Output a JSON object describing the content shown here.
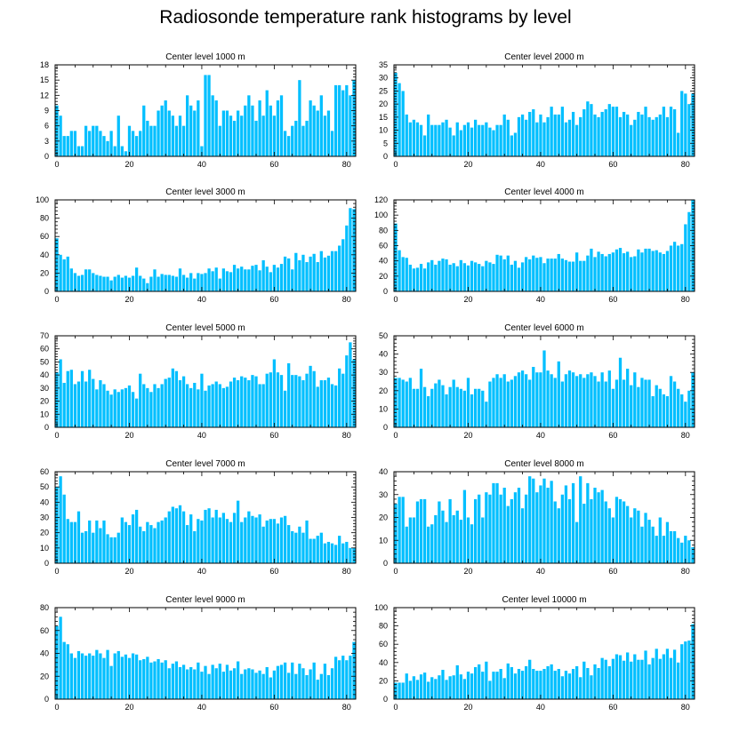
{
  "title": "Radiosonde temperature rank histograms by level",
  "colors": {
    "bar": "#00bfff",
    "bar_edge": "#0aa8e6",
    "axis": "#000000"
  },
  "chart_data": [
    {
      "type": "bar",
      "title": "Center level 1000 m",
      "xlim": [
        -0.5,
        82.5
      ],
      "ylim": [
        0,
        18
      ],
      "xticks": [
        0,
        20,
        40,
        60,
        80
      ],
      "yticks": [
        0,
        3,
        6,
        9,
        12,
        15,
        18
      ],
      "values": [
        10,
        8,
        4,
        4,
        5,
        5,
        2,
        2,
        6,
        5,
        6,
        6,
        5,
        4,
        3,
        5,
        2,
        8,
        2,
        1,
        6,
        5,
        4,
        5,
        10,
        7,
        6,
        6,
        9,
        10,
        11,
        9,
        8,
        6,
        8,
        6,
        12,
        10,
        9,
        11,
        2,
        16,
        16,
        12,
        11,
        6,
        9,
        9,
        8,
        7,
        9,
        8,
        10,
        12,
        10,
        7,
        11,
        8,
        13,
        10,
        8,
        11,
        12,
        5,
        4,
        6,
        7,
        15,
        6,
        7,
        11,
        10,
        9,
        12,
        8,
        9,
        5,
        14,
        14,
        13,
        14,
        12,
        15
      ]
    },
    {
      "type": "bar",
      "title": "Center level 2000 m",
      "xlim": [
        -0.5,
        82.5
      ],
      "ylim": [
        0,
        35
      ],
      "xticks": [
        0,
        20,
        40,
        60,
        80
      ],
      "yticks": [
        0,
        5,
        10,
        15,
        20,
        25,
        30,
        35
      ],
      "values": [
        32,
        28,
        25,
        16,
        13,
        14,
        13,
        12,
        8,
        16,
        12,
        12,
        12,
        13,
        14,
        11,
        8,
        13,
        10,
        12,
        13,
        11,
        14,
        12,
        12,
        13,
        11,
        10,
        12,
        12,
        16,
        14,
        8,
        9,
        15,
        16,
        14,
        17,
        18,
        13,
        16,
        13,
        15,
        19,
        16,
        16,
        19,
        13,
        14,
        17,
        12,
        15,
        18,
        21,
        20,
        16,
        15,
        17,
        18,
        20,
        19,
        19,
        15,
        17,
        16,
        12,
        14,
        17,
        16,
        19,
        15,
        14,
        15,
        16,
        19,
        15,
        19,
        18,
        9,
        25,
        24,
        20,
        24
      ]
    },
    {
      "type": "bar",
      "title": "Center level 3000 m",
      "xlim": [
        -0.5,
        82.5
      ],
      "ylim": [
        0,
        100
      ],
      "xticks": [
        0,
        20,
        40,
        60,
        80
      ],
      "yticks": [
        0,
        20,
        40,
        60,
        80,
        100
      ],
      "values": [
        58,
        40,
        35,
        38,
        25,
        20,
        17,
        18,
        24,
        24,
        20,
        18,
        17,
        16,
        16,
        12,
        16,
        18,
        15,
        17,
        15,
        17,
        26,
        17,
        14,
        9,
        16,
        24,
        16,
        19,
        18,
        18,
        17,
        16,
        25,
        18,
        15,
        20,
        14,
        20,
        19,
        20,
        25,
        22,
        26,
        14,
        25,
        22,
        21,
        29,
        25,
        27,
        24,
        24,
        28,
        29,
        23,
        34,
        27,
        21,
        29,
        26,
        30,
        38,
        36,
        24,
        42,
        34,
        40,
        32,
        38,
        41,
        32,
        44,
        37,
        39,
        44,
        44,
        50,
        57,
        72,
        91,
        90
      ]
    },
    {
      "type": "bar",
      "title": "Center level 4000 m",
      "xlim": [
        -0.5,
        82.5
      ],
      "ylim": [
        0,
        120
      ],
      "xticks": [
        0,
        20,
        40,
        60,
        80
      ],
      "yticks": [
        0,
        20,
        40,
        60,
        80,
        100,
        120
      ],
      "values": [
        89,
        54,
        45,
        44,
        35,
        30,
        31,
        36,
        30,
        38,
        41,
        35,
        40,
        43,
        42,
        35,
        37,
        33,
        41,
        37,
        34,
        40,
        38,
        36,
        33,
        40,
        38,
        36,
        48,
        47,
        42,
        47,
        35,
        40,
        31,
        38,
        45,
        42,
        47,
        44,
        45,
        37,
        43,
        43,
        43,
        49,
        43,
        41,
        39,
        39,
        51,
        40,
        40,
        47,
        56,
        45,
        52,
        49,
        46,
        49,
        51,
        55,
        57,
        50,
        52,
        45,
        46,
        55,
        51,
        56,
        56,
        53,
        54,
        51,
        49,
        53,
        60,
        65,
        60,
        62,
        88,
        104,
        120
      ]
    },
    {
      "type": "bar",
      "title": "Center level 5000 m",
      "xlim": [
        -0.5,
        82.5
      ],
      "ylim": [
        0,
        70
      ],
      "xticks": [
        0,
        20,
        40,
        60,
        80
      ],
      "yticks": [
        0,
        10,
        20,
        30,
        40,
        50,
        60,
        70
      ],
      "values": [
        42,
        52,
        34,
        43,
        44,
        33,
        35,
        43,
        35,
        44,
        37,
        29,
        36,
        33,
        28,
        25,
        29,
        27,
        29,
        30,
        32,
        27,
        22,
        41,
        33,
        30,
        27,
        33,
        30,
        33,
        37,
        38,
        45,
        43,
        36,
        39,
        33,
        30,
        34,
        29,
        41,
        28,
        32,
        33,
        35,
        33,
        30,
        31,
        35,
        38,
        36,
        39,
        38,
        36,
        40,
        39,
        33,
        33,
        41,
        42,
        52,
        42,
        40,
        28,
        49,
        40,
        40,
        39,
        36,
        41,
        47,
        43,
        31,
        36,
        36,
        38,
        33,
        32,
        45,
        41,
        55,
        65,
        52
      ]
    },
    {
      "type": "bar",
      "title": "Center level 6000 m",
      "xlim": [
        -0.5,
        82.5
      ],
      "ylim": [
        0,
        50
      ],
      "xticks": [
        0,
        20,
        40,
        60,
        80
      ],
      "yticks": [
        0,
        10,
        20,
        30,
        40,
        50
      ],
      "values": [
        27,
        27,
        26,
        25,
        27,
        21,
        21,
        32,
        22,
        17,
        21,
        24,
        26,
        23,
        18,
        22,
        26,
        22,
        21,
        20,
        27,
        18,
        21,
        21,
        20,
        14,
        25,
        27,
        29,
        27,
        29,
        25,
        26,
        28,
        30,
        31,
        29,
        26,
        33,
        30,
        30,
        42,
        31,
        29,
        27,
        36,
        25,
        29,
        31,
        30,
        28,
        29,
        27,
        29,
        30,
        28,
        25,
        30,
        25,
        31,
        21,
        26,
        38,
        26,
        32,
        23,
        30,
        22,
        27,
        26,
        26,
        17,
        23,
        21,
        18,
        17,
        28,
        25,
        21,
        18,
        14,
        20,
        30
      ]
    },
    {
      "type": "bar",
      "title": "Center level 7000 m",
      "xlim": [
        -0.5,
        82.5
      ],
      "ylim": [
        0,
        60
      ],
      "xticks": [
        0,
        20,
        40,
        60,
        80
      ],
      "yticks": [
        0,
        10,
        20,
        30,
        40,
        50,
        60
      ],
      "values": [
        50,
        57,
        45,
        29,
        27,
        27,
        34,
        20,
        21,
        28,
        20,
        28,
        23,
        28,
        19,
        17,
        17,
        20,
        30,
        27,
        25,
        32,
        35,
        24,
        21,
        27,
        25,
        23,
        27,
        28,
        30,
        34,
        37,
        36,
        38,
        34,
        25,
        32,
        21,
        29,
        28,
        35,
        36,
        30,
        35,
        30,
        33,
        29,
        27,
        33,
        41,
        27,
        30,
        34,
        31,
        30,
        32,
        24,
        28,
        29,
        29,
        26,
        30,
        31,
        25,
        21,
        20,
        24,
        20,
        28,
        16,
        16,
        18,
        20,
        13,
        14,
        13,
        12,
        18,
        13,
        14,
        10,
        10
      ]
    },
    {
      "type": "bar",
      "title": "Center level 8000 m",
      "xlim": [
        -0.5,
        82.5
      ],
      "ylim": [
        0,
        40
      ],
      "xticks": [
        0,
        20,
        40,
        60,
        80
      ],
      "yticks": [
        0,
        10,
        20,
        30,
        40
      ],
      "values": [
        26,
        29,
        29,
        16,
        20,
        20,
        27,
        28,
        28,
        16,
        17,
        21,
        27,
        23,
        18,
        28,
        21,
        23,
        19,
        32,
        20,
        17,
        28,
        30,
        20,
        31,
        30,
        35,
        35,
        30,
        33,
        25,
        28,
        31,
        33,
        24,
        30,
        38,
        37,
        31,
        34,
        37,
        33,
        36,
        27,
        24,
        30,
        34,
        28,
        35,
        18,
        38,
        26,
        35,
        28,
        33,
        31,
        32,
        27,
        24,
        20,
        29,
        28,
        27,
        25,
        20,
        24,
        23,
        16,
        22,
        19,
        16,
        12,
        20,
        12,
        18,
        14,
        14,
        11,
        9,
        12,
        10,
        7
      ]
    },
    {
      "type": "bar",
      "title": "Center level 9000 m",
      "xlim": [
        -0.5,
        82.5
      ],
      "ylim": [
        0,
        80
      ],
      "xticks": [
        0,
        20,
        40,
        60,
        80
      ],
      "yticks": [
        0,
        20,
        40,
        60,
        80
      ],
      "values": [
        64,
        72,
        50,
        48,
        40,
        36,
        42,
        40,
        38,
        40,
        38,
        43,
        40,
        36,
        43,
        29,
        40,
        42,
        37,
        39,
        36,
        40,
        39,
        34,
        35,
        37,
        32,
        33,
        35,
        32,
        34,
        27,
        31,
        33,
        28,
        30,
        26,
        28,
        26,
        32,
        24,
        29,
        22,
        30,
        27,
        31,
        24,
        30,
        25,
        27,
        33,
        22,
        26,
        27,
        26,
        23,
        25,
        22,
        28,
        19,
        25,
        29,
        30,
        32,
        23,
        32,
        22,
        31,
        27,
        21,
        26,
        32,
        17,
        22,
        31,
        21,
        27,
        37,
        34,
        38,
        34,
        38,
        50
      ]
    },
    {
      "type": "bar",
      "title": "Center level 10000 m",
      "xlim": [
        -0.5,
        82.5
      ],
      "ylim": [
        0,
        100
      ],
      "xticks": [
        0,
        20,
        40,
        60,
        80
      ],
      "yticks": [
        0,
        20,
        40,
        60,
        80,
        100
      ],
      "values": [
        18,
        18,
        18,
        28,
        20,
        25,
        21,
        27,
        29,
        19,
        24,
        22,
        26,
        32,
        21,
        25,
        26,
        37,
        27,
        22,
        30,
        28,
        35,
        38,
        30,
        41,
        20,
        30,
        30,
        33,
        23,
        39,
        35,
        28,
        33,
        31,
        36,
        43,
        33,
        31,
        31,
        33,
        36,
        38,
        31,
        33,
        25,
        31,
        28,
        33,
        36,
        24,
        41,
        34,
        26,
        38,
        34,
        45,
        43,
        36,
        44,
        49,
        48,
        42,
        51,
        41,
        49,
        43,
        43,
        53,
        38,
        45,
        55,
        44,
        49,
        55,
        45,
        54,
        40,
        60,
        63,
        64,
        82
      ]
    }
  ]
}
